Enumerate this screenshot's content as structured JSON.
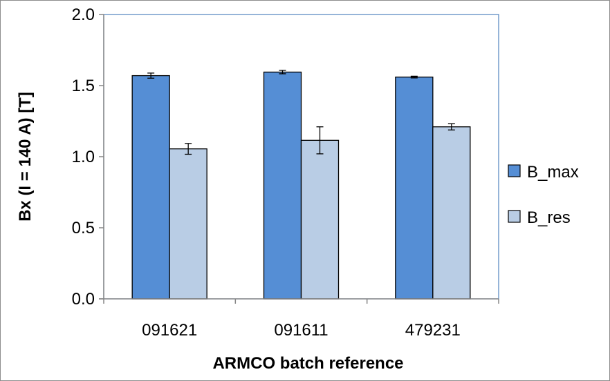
{
  "chart_data": {
    "type": "bar",
    "categories": [
      "091621",
      "091611",
      "479231"
    ],
    "series": [
      {
        "name": "B_max",
        "values": [
          1.57,
          1.595,
          1.56
        ],
        "errors": [
          0.018,
          0.012,
          0.006
        ],
        "color": "#558ed5"
      },
      {
        "name": "B_res",
        "values": [
          1.055,
          1.115,
          1.21
        ],
        "errors": [
          0.038,
          0.095,
          0.022
        ],
        "color": "#b9cde5"
      }
    ],
    "xlabel": "ARMCO batch reference",
    "ylabel": "Bx (I = 140 A) [T]",
    "ylim": [
      0,
      2.0
    ],
    "yticks": [
      "0.0",
      "0.5",
      "1.0",
      "1.5",
      "2.0"
    ],
    "grid": false,
    "legend_position": "right",
    "plot_border_color": "#4f81bd",
    "bar_stroke_color": "#000000"
  }
}
